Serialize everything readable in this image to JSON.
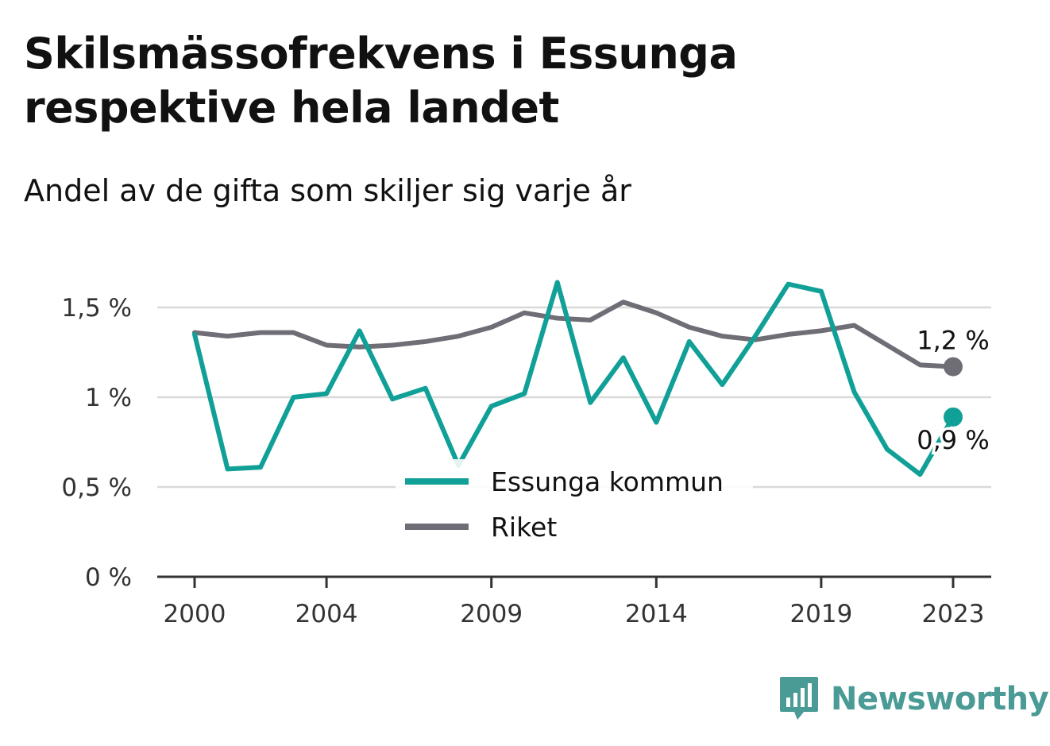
{
  "header": {
    "title": "Skilsmässofrekvens i Essunga respektive hela landet",
    "subtitle": "Andel av de gifta som skiljer sig varje år"
  },
  "colors": {
    "essunga": "#11a097",
    "riket": "#6f6e76",
    "grid": "#d9d9d9",
    "axis": "#333333"
  },
  "chart_data": {
    "type": "line",
    "x": [
      2000,
      2001,
      2002,
      2003,
      2004,
      2005,
      2006,
      2007,
      2008,
      2009,
      2010,
      2011,
      2012,
      2013,
      2014,
      2015,
      2016,
      2017,
      2018,
      2019,
      2020,
      2021,
      2022,
      2023
    ],
    "x_tick_labels": [
      "2000",
      "2004",
      "2009",
      "2014",
      "2019",
      "2023"
    ],
    "y_tick_labels": [
      "0 %",
      "0,5 %",
      "1 %",
      "1,5 %"
    ],
    "y_ticks": [
      0,
      0.5,
      1,
      1.5
    ],
    "ylim": [
      0,
      1.7
    ],
    "grid": true,
    "legend_position": "bottom-center",
    "series": [
      {
        "name": "Essunga kommun",
        "color_key": "essunga",
        "values": [
          1.35,
          0.6,
          0.61,
          1.0,
          1.02,
          1.37,
          0.99,
          1.05,
          0.62,
          0.95,
          1.02,
          1.64,
          0.97,
          1.22,
          0.86,
          1.31,
          1.07,
          1.34,
          1.63,
          1.59,
          1.03,
          0.71,
          0.57,
          0.89
        ],
        "end_label": "0,9 %"
      },
      {
        "name": "Riket",
        "color_key": "riket",
        "values": [
          1.36,
          1.34,
          1.36,
          1.36,
          1.29,
          1.28,
          1.29,
          1.31,
          1.34,
          1.39,
          1.47,
          1.44,
          1.43,
          1.53,
          1.47,
          1.39,
          1.34,
          1.32,
          1.35,
          1.37,
          1.4,
          1.29,
          1.18,
          1.17
        ],
        "end_label": "1,2 %"
      }
    ]
  },
  "brand": {
    "name": "Newsworthy"
  }
}
